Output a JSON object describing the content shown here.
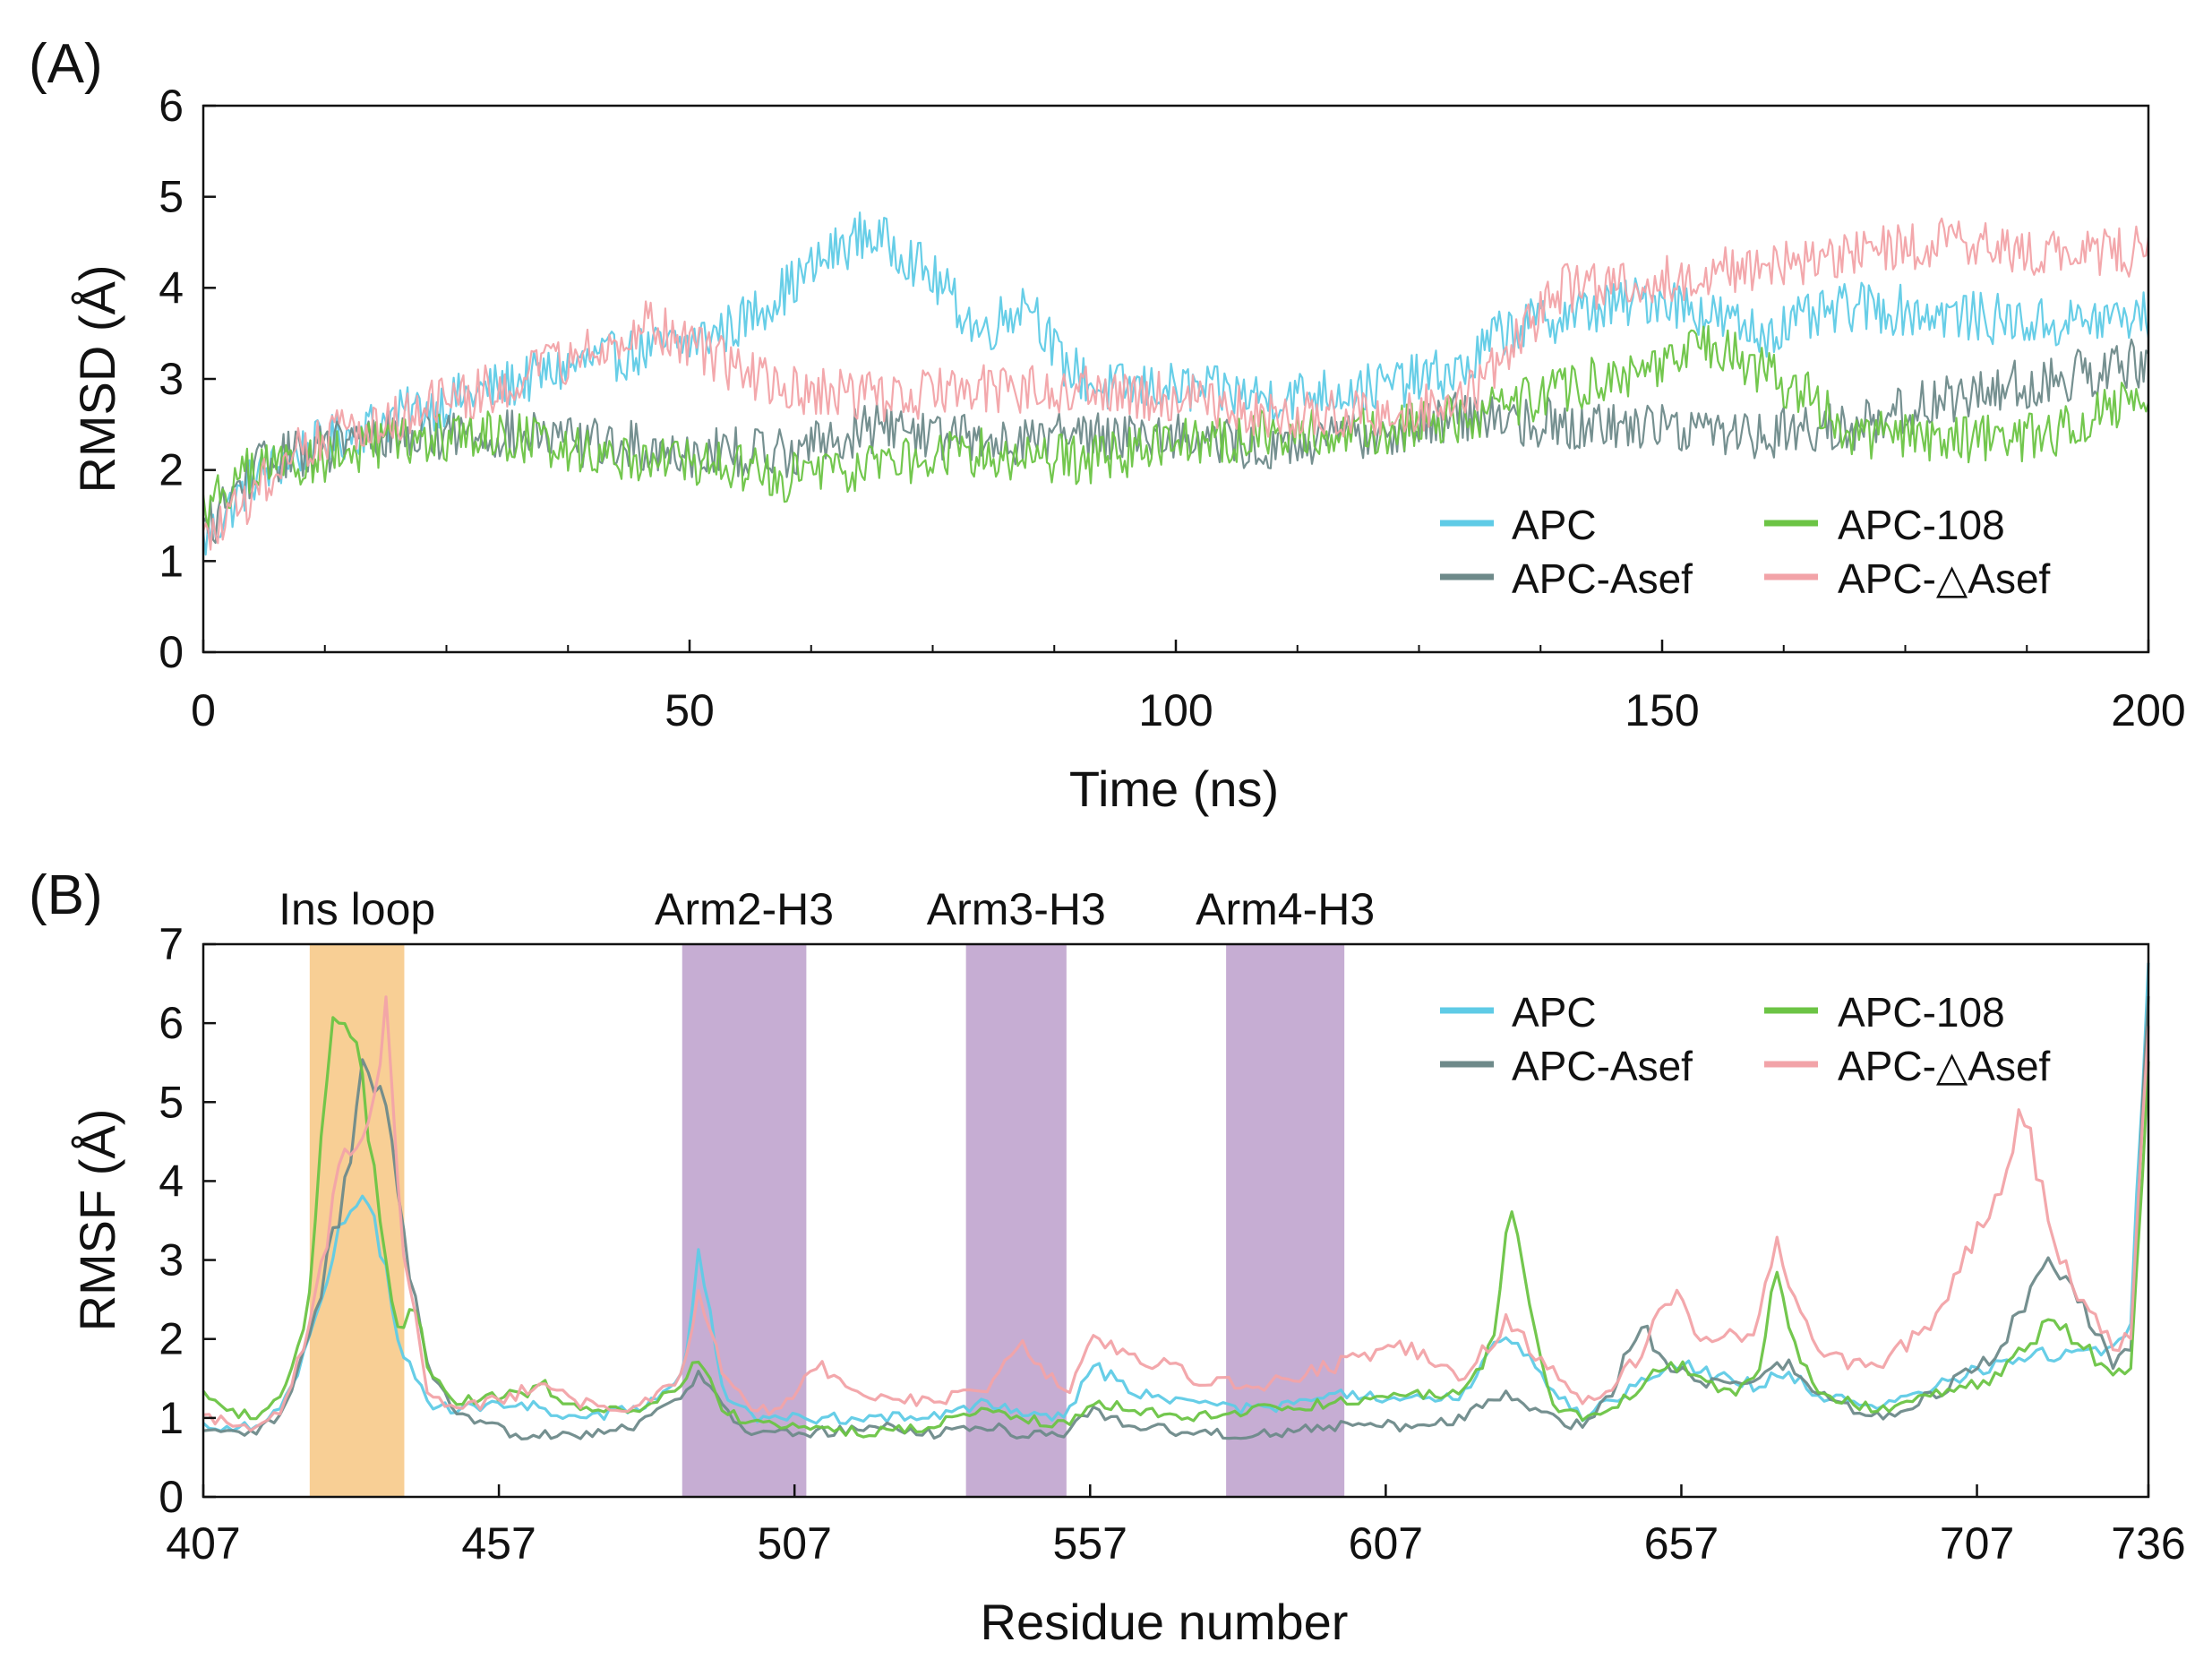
{
  "figure": {
    "colors": {
      "APC": "#5fcbe6",
      "APC-Asef": "#6e8a8a",
      "APC-108": "#6cc445",
      "APC-△Asef": "#f2a3a8",
      "ins_loop_band": "#f8cf95",
      "arm_band": "#c6add3",
      "axis": "#111111"
    }
  },
  "chart_data": [
    {
      "id": "A",
      "panel_label": "(A)",
      "type": "line",
      "title": "",
      "xlabel": "Time (ns)",
      "ylabel": "RMSD (Å)",
      "xlim": [
        0,
        200
      ],
      "ylim": [
        0,
        6
      ],
      "xticks": [
        "0",
        "50",
        "100",
        "150",
        "200"
      ],
      "yticks": [
        "0",
        "1",
        "2",
        "3",
        "4",
        "5",
        "6"
      ],
      "grid": false,
      "legend_position": "bottom-right",
      "noise": 0.28,
      "series": [
        {
          "name": "APC",
          "color": "#5fcbe6",
          "x": [
            0,
            5,
            10,
            20,
            30,
            40,
            50,
            55,
            60,
            65,
            68,
            72,
            76,
            80,
            85,
            88,
            92,
            100,
            110,
            120,
            130,
            133,
            140,
            150,
            160,
            170,
            180,
            190,
            200
          ],
          "y": [
            1.2,
            1.9,
            2.2,
            2.6,
            2.9,
            3.2,
            3.4,
            3.6,
            4.0,
            4.4,
            4.6,
            4.4,
            4.0,
            3.5,
            3.9,
            3.2,
            2.9,
            2.9,
            2.8,
            2.9,
            3.1,
            3.5,
            3.7,
            3.9,
            3.5,
            3.8,
            3.7,
            3.6,
            3.7
          ]
        },
        {
          "name": "APC-Asef",
          "color": "#6e8a8a",
          "x": [
            0,
            5,
            10,
            20,
            30,
            40,
            50,
            60,
            70,
            80,
            90,
            100,
            110,
            120,
            130,
            140,
            150,
            160,
            170,
            180,
            190,
            200
          ],
          "y": [
            1.3,
            2.0,
            2.2,
            2.4,
            2.4,
            2.3,
            2.2,
            2.2,
            2.5,
            2.3,
            2.4,
            2.4,
            2.2,
            2.4,
            2.6,
            2.5,
            2.5,
            2.4,
            2.5,
            2.8,
            3.0,
            3.2
          ]
        },
        {
          "name": "APC-108",
          "color": "#6cc445",
          "x": [
            0,
            5,
            10,
            20,
            30,
            40,
            50,
            60,
            70,
            80,
            90,
            100,
            110,
            120,
            130,
            140,
            150,
            155,
            160,
            165,
            170,
            180,
            190,
            200
          ],
          "y": [
            1.6,
            2.0,
            2.1,
            2.3,
            2.4,
            2.2,
            2.1,
            1.9,
            2.1,
            2.2,
            2.1,
            2.3,
            2.4,
            2.4,
            2.6,
            2.9,
            3.1,
            3.4,
            3.1,
            2.8,
            2.4,
            2.3,
            2.4,
            2.9
          ]
        },
        {
          "name": "APC-△Asef",
          "color": "#f2a3a8",
          "x": [
            0,
            5,
            10,
            20,
            30,
            40,
            45,
            50,
            55,
            60,
            70,
            80,
            90,
            100,
            110,
            120,
            130,
            135,
            140,
            150,
            160,
            170,
            180,
            190,
            200
          ],
          "y": [
            1.2,
            1.7,
            2.3,
            2.6,
            2.9,
            3.3,
            3.6,
            3.4,
            3.1,
            2.9,
            2.8,
            2.9,
            2.9,
            2.8,
            2.6,
            2.6,
            2.8,
            3.4,
            4.0,
            4.1,
            4.2,
            4.4,
            4.5,
            4.4,
            4.4
          ]
        }
      ]
    },
    {
      "id": "B",
      "panel_label": "(B)",
      "type": "line",
      "title": "",
      "xlabel": "Residue number",
      "ylabel": "RMSF (Å)",
      "xlim": [
        407,
        736
      ],
      "ylim": [
        0,
        7
      ],
      "xticks": [
        "407",
        "457",
        "507",
        "557",
        "607",
        "657",
        "707",
        "736"
      ],
      "yticks": [
        "0",
        "1",
        "2",
        "3",
        "4",
        "5",
        "6",
        "7"
      ],
      "grid": false,
      "legend_position": "top-right",
      "noise": 0.12,
      "regions": [
        {
          "label": "Ins loop",
          "start": 425,
          "end": 441,
          "kind": "ins"
        },
        {
          "label": "Arm2-H3",
          "start": 488,
          "end": 509,
          "kind": "arm"
        },
        {
          "label": "Arm3-H3",
          "start": 536,
          "end": 553,
          "kind": "arm"
        },
        {
          "label": "Arm4-H3",
          "start": 580,
          "end": 600,
          "kind": "arm"
        }
      ],
      "series": [
        {
          "name": "APC",
          "color": "#5fcbe6",
          "x": [
            407,
            415,
            420,
            425,
            430,
            433,
            436,
            440,
            445,
            450,
            460,
            470,
            480,
            488,
            491,
            495,
            500,
            510,
            520,
            530,
            540,
            545,
            553,
            557,
            565,
            575,
            585,
            600,
            610,
            620,
            627,
            630,
            635,
            640,
            645,
            650,
            655,
            660,
            665,
            670,
            675,
            680,
            690,
            700,
            710,
            720,
            730,
            733,
            736
          ],
          "y": [
            0.9,
            0.9,
            1.1,
            2.0,
            3.3,
            3.7,
            3.5,
            2.0,
            1.2,
            1.1,
            1.2,
            1.0,
            1.1,
            1.5,
            3.1,
            1.3,
            1.0,
            1.0,
            1.0,
            1.0,
            1.2,
            1.1,
            1.0,
            1.7,
            1.3,
            1.2,
            1.1,
            1.3,
            1.2,
            1.3,
            2.1,
            1.9,
            1.4,
            1.0,
            1.2,
            1.5,
            1.7,
            1.6,
            1.5,
            1.4,
            1.6,
            1.3,
            1.1,
            1.4,
            1.7,
            1.8,
            1.9,
            2.1,
            7.0
          ]
        },
        {
          "name": "APC-Asef",
          "color": "#6e8a8a",
          "x": [
            407,
            415,
            420,
            425,
            430,
            434,
            437,
            441,
            445,
            450,
            460,
            470,
            480,
            488,
            491,
            495,
            500,
            510,
            520,
            530,
            540,
            545,
            553,
            557,
            565,
            575,
            585,
            600,
            610,
            620,
            627,
            630,
            635,
            640,
            645,
            650,
            655,
            660,
            665,
            670,
            675,
            680,
            690,
            700,
            710,
            720,
            730,
            733,
            736
          ],
          "y": [
            0.8,
            0.8,
            1.0,
            2.0,
            3.6,
            5.3,
            5.4,
            3.2,
            1.6,
            1.0,
            0.8,
            0.8,
            0.9,
            1.3,
            1.6,
            1.1,
            0.8,
            0.8,
            0.9,
            0.8,
            0.9,
            0.8,
            0.8,
            1.1,
            0.9,
            0.8,
            0.8,
            0.9,
            0.9,
            1.0,
            1.3,
            1.2,
            1.0,
            0.9,
            1.3,
            2.2,
            1.7,
            1.5,
            1.4,
            1.5,
            1.7,
            1.3,
            1.0,
            1.3,
            1.8,
            3.0,
            1.7,
            1.8,
            6.5
          ]
        },
        {
          "name": "APC-108",
          "color": "#6cc445",
          "x": [
            407,
            415,
            420,
            425,
            429,
            433,
            436,
            440,
            443,
            445,
            450,
            460,
            465,
            470,
            480,
            488,
            491,
            495,
            500,
            510,
            520,
            530,
            540,
            545,
            553,
            557,
            565,
            575,
            585,
            600,
            610,
            620,
            625,
            628,
            632,
            635,
            640,
            645,
            650,
            655,
            660,
            665,
            670,
            673,
            676,
            680,
            690,
            700,
            710,
            720,
            730,
            733,
            736
          ],
          "y": [
            1.3,
            1.0,
            1.2,
            2.5,
            6.3,
            5.5,
            4.1,
            2.0,
            2.4,
            1.7,
            1.2,
            1.3,
            1.4,
            1.1,
            1.1,
            1.4,
            1.8,
            1.1,
            0.9,
            0.9,
            0.8,
            0.9,
            1.1,
            1.0,
            0.9,
            1.2,
            1.1,
            1.0,
            1.1,
            1.2,
            1.3,
            1.3,
            1.9,
            3.8,
            2.1,
            1.2,
            1.0,
            1.1,
            1.4,
            1.7,
            1.6,
            1.3,
            1.5,
            3.0,
            2.0,
            1.3,
            1.1,
            1.3,
            1.5,
            2.3,
            1.5,
            1.6,
            5.6
          ]
        },
        {
          "name": "APC-△Asef",
          "color": "#f2a3a8",
          "x": [
            407,
            415,
            420,
            425,
            430,
            435,
            438,
            441,
            445,
            450,
            460,
            465,
            470,
            480,
            488,
            491,
            495,
            500,
            505,
            510,
            520,
            530,
            540,
            545,
            553,
            557,
            565,
            575,
            585,
            600,
            610,
            620,
            627,
            630,
            635,
            640,
            645,
            650,
            655,
            660,
            665,
            670,
            673,
            676,
            680,
            690,
            700,
            705,
            710,
            715,
            720,
            725,
            730,
            733,
            736
          ],
          "y": [
            1.0,
            0.9,
            1.1,
            2.1,
            4.2,
            5.0,
            6.1,
            3.0,
            1.3,
            1.1,
            1.3,
            1.5,
            1.2,
            1.1,
            1.5,
            2.6,
            1.5,
            1.1,
            1.1,
            1.7,
            1.3,
            1.2,
            1.4,
            2.0,
            1.3,
            2.0,
            1.8,
            1.5,
            1.4,
            1.7,
            1.9,
            1.5,
            2.2,
            2.0,
            1.6,
            1.2,
            1.4,
            1.8,
            2.6,
            2.1,
            2.0,
            2.2,
            3.3,
            2.5,
            1.8,
            1.6,
            2.3,
            3.0,
            3.8,
            4.9,
            3.3,
            2.4,
            1.9,
            2.0,
            6.0
          ]
        }
      ]
    }
  ]
}
